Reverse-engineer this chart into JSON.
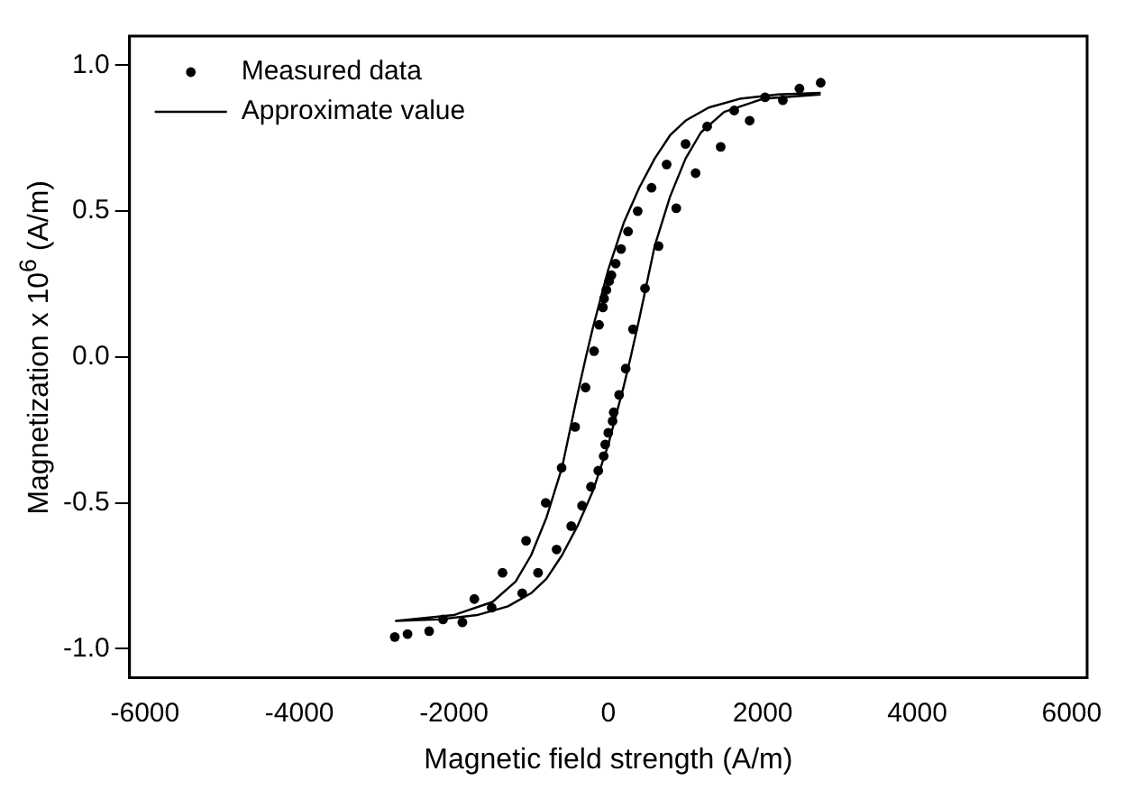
{
  "chart_data": {
    "type": "scatter",
    "xlabel": "Magnetic field strength (A/m)",
    "ylabel": "Magnetization x 10$^{6}$ (A/m)",
    "xlim": [
      -6200,
      6200
    ],
    "xticks": [
      -6000,
      -4000,
      -2000,
      0,
      2000,
      4000,
      6000
    ],
    "ylim": [
      -1.1,
      1.1
    ],
    "yticks": [
      {
        "value": -1,
        "label": "-1.0"
      },
      {
        "value": -0.5,
        "label": "-0.5"
      },
      {
        "value": 0,
        "label": "0.0"
      },
      {
        "value": 0.5,
        "label": "0.5"
      },
      {
        "value": 1,
        "label": "1.0"
      }
    ],
    "grid": false,
    "legend": "top left",
    "series": [
      {
        "name": "Measured data",
        "type": "scatter",
        "marker": "circle",
        "color": "#000000",
        "x": [
          2750,
          2475,
          2030,
          2260,
          1830,
          1630,
          1280,
          1455,
          1000,
          1130,
          755,
          880,
          560,
          650,
          380,
          475,
          255,
          320,
          165,
          225,
          95,
          140,
          40,
          70,
          10,
          55,
          0,
          -25,
          -40,
          -55,
          -60,
          -70,
          -120,
          -130,
          -185,
          -225,
          -295,
          -340,
          -430,
          -480,
          -605,
          -670,
          -810,
          -910,
          -1065,
          -1115,
          -1370,
          -1510,
          -1735,
          -1890,
          -2140,
          -2320,
          -2600,
          -2765
        ],
        "values": [
          0.94,
          0.92,
          0.89,
          0.88,
          0.81,
          0.845,
          0.79,
          0.72,
          0.73,
          0.63,
          0.66,
          0.51,
          0.58,
          0.38,
          0.5,
          0.235,
          0.43,
          0.095,
          0.37,
          -0.04,
          0.32,
          -0.13,
          0.28,
          -0.19,
          0.26,
          -0.22,
          -0.26,
          0.23,
          -0.3,
          0.2,
          -0.34,
          0.17,
          0.11,
          -0.39,
          0.02,
          -0.445,
          -0.105,
          -0.51,
          -0.24,
          -0.58,
          -0.38,
          -0.66,
          -0.5,
          -0.74,
          -0.63,
          -0.81,
          -0.74,
          -0.86,
          -0.83,
          -0.91,
          -0.9,
          -0.94,
          -0.95,
          -0.96
        ]
      },
      {
        "name": "Approximate value",
        "type": "line",
        "marker": "none",
        "line_style": "solid",
        "color": "#000000",
        "x": [
          2750,
          2200,
          1700,
          1300,
          1000,
          800,
          600,
          400,
          200,
          0,
          -200,
          -290,
          -400,
          -600,
          -800,
          -1000,
          -1200,
          -1500,
          -2000,
          -2750,
          -2200,
          -1700,
          -1300,
          -1000,
          -800,
          -600,
          -400,
          -200,
          0,
          200,
          290,
          400,
          600,
          800,
          1000,
          1200,
          1500,
          2000,
          2750
        ],
        "values": [
          0.905,
          0.9,
          0.885,
          0.855,
          0.81,
          0.76,
          0.68,
          0.58,
          0.46,
          0.3,
          0.1,
          0,
          -0.13,
          -0.38,
          -0.55,
          -0.68,
          -0.77,
          -0.84,
          -0.885,
          -0.905,
          -0.9,
          -0.885,
          -0.855,
          -0.81,
          -0.76,
          -0.68,
          -0.58,
          -0.46,
          -0.3,
          -0.1,
          0,
          0.13,
          0.38,
          0.55,
          0.68,
          0.77,
          0.84,
          0.885,
          0.9
        ]
      }
    ]
  }
}
